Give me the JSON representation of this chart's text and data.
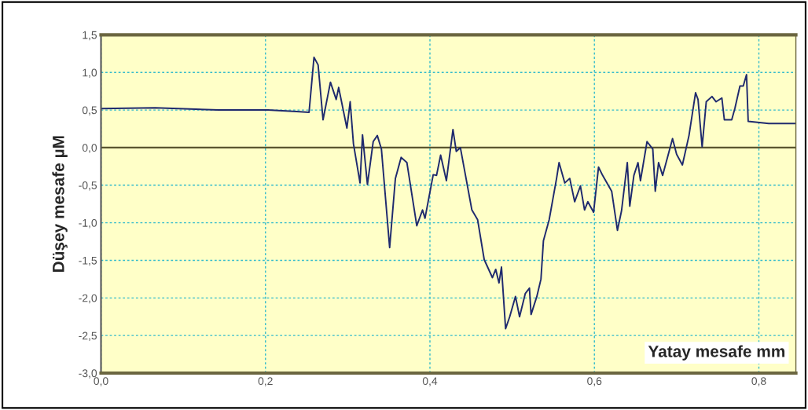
{
  "chart_data": {
    "type": "line",
    "xlabel": "Yatay mesafe mm",
    "ylabel": "Düşey mesafe µM",
    "x": [
      0.0,
      0.066,
      0.143,
      0.203,
      0.238,
      0.253,
      0.259,
      0.264,
      0.27,
      0.279,
      0.286,
      0.289,
      0.299,
      0.303,
      0.307,
      0.315,
      0.318,
      0.324,
      0.331,
      0.336,
      0.341,
      0.351,
      0.358,
      0.365,
      0.372,
      0.384,
      0.391,
      0.394,
      0.404,
      0.408,
      0.413,
      0.42,
      0.428,
      0.432,
      0.437,
      0.451,
      0.458,
      0.466,
      0.476,
      0.48,
      0.484,
      0.487,
      0.492,
      0.497,
      0.504,
      0.509,
      0.516,
      0.521,
      0.523,
      0.53,
      0.535,
      0.538,
      0.545,
      0.554,
      0.557,
      0.564,
      0.57,
      0.576,
      0.583,
      0.588,
      0.592,
      0.599,
      0.605,
      0.61,
      0.621,
      0.628,
      0.633,
      0.64,
      0.643,
      0.648,
      0.653,
      0.656,
      0.664,
      0.671,
      0.674,
      0.678,
      0.683,
      0.695,
      0.7,
      0.707,
      0.715,
      0.723,
      0.726,
      0.731,
      0.736,
      0.743,
      0.748,
      0.755,
      0.758,
      0.767,
      0.771,
      0.777,
      0.781,
      0.785,
      0.787,
      0.812,
      0.844
    ],
    "series": [
      {
        "color": "#1f2a6e",
        "values": [
          0.52,
          0.53,
          0.5,
          0.5,
          0.48,
          0.47,
          1.2,
          1.1,
          0.37,
          0.87,
          0.64,
          0.8,
          0.26,
          0.61,
          0.05,
          -0.47,
          0.17,
          -0.49,
          0.08,
          0.16,
          -0.02,
          -1.33,
          -0.41,
          -0.13,
          -0.2,
          -1.04,
          -0.83,
          -0.94,
          -0.36,
          -0.37,
          -0.1,
          -0.44,
          0.24,
          -0.05,
          0.0,
          -0.83,
          -0.96,
          -1.49,
          -1.73,
          -1.62,
          -1.8,
          -1.59,
          -2.41,
          -2.25,
          -1.98,
          -2.25,
          -1.94,
          -1.87,
          -2.22,
          -1.98,
          -1.75,
          -1.24,
          -0.96,
          -0.41,
          -0.2,
          -0.47,
          -0.41,
          -0.72,
          -0.51,
          -0.83,
          -0.72,
          -0.86,
          -0.26,
          -0.37,
          -0.58,
          -1.1,
          -0.84,
          -0.2,
          -0.78,
          -0.37,
          -0.2,
          -0.44,
          0.08,
          -0.02,
          -0.58,
          -0.2,
          -0.37,
          0.12,
          -0.09,
          -0.23,
          0.16,
          0.73,
          0.64,
          0.01,
          0.61,
          0.68,
          0.61,
          0.66,
          0.37,
          0.37,
          0.53,
          0.82,
          0.82,
          0.97,
          0.35,
          0.32,
          0.32
        ]
      }
    ],
    "xlim": [
      0,
      0.845
    ],
    "ylim": [
      -3.0,
      1.5
    ],
    "xticks": [
      {
        "value": 0,
        "label": "0,0"
      },
      {
        "value": 0.2,
        "label": "0,2"
      },
      {
        "value": 0.4,
        "label": "0,4"
      },
      {
        "value": 0.6,
        "label": "0,6"
      },
      {
        "value": 0.8,
        "label": "0,8"
      }
    ],
    "yticks": [
      {
        "value": -3.0,
        "label": "-3,0"
      },
      {
        "value": -2.5,
        "label": "-2,5"
      },
      {
        "value": -2.0,
        "label": "-2,0"
      },
      {
        "value": -1.5,
        "label": "-1,5"
      },
      {
        "value": -1.0,
        "label": "-1,0"
      },
      {
        "value": -0.5,
        "label": "-0,5"
      },
      {
        "value": 0,
        "label": "0,0"
      },
      {
        "value": 0.5,
        "label": "0,5"
      },
      {
        "value": 1.0,
        "label": "1,0"
      },
      {
        "value": 1.5,
        "label": "1,5"
      }
    ],
    "ref_lines": [
      {
        "axis": "y",
        "value": 0,
        "color": "#5a5530",
        "line_style": "solid"
      }
    ],
    "grid": true,
    "line_style": "solid",
    "marker": "none"
  }
}
